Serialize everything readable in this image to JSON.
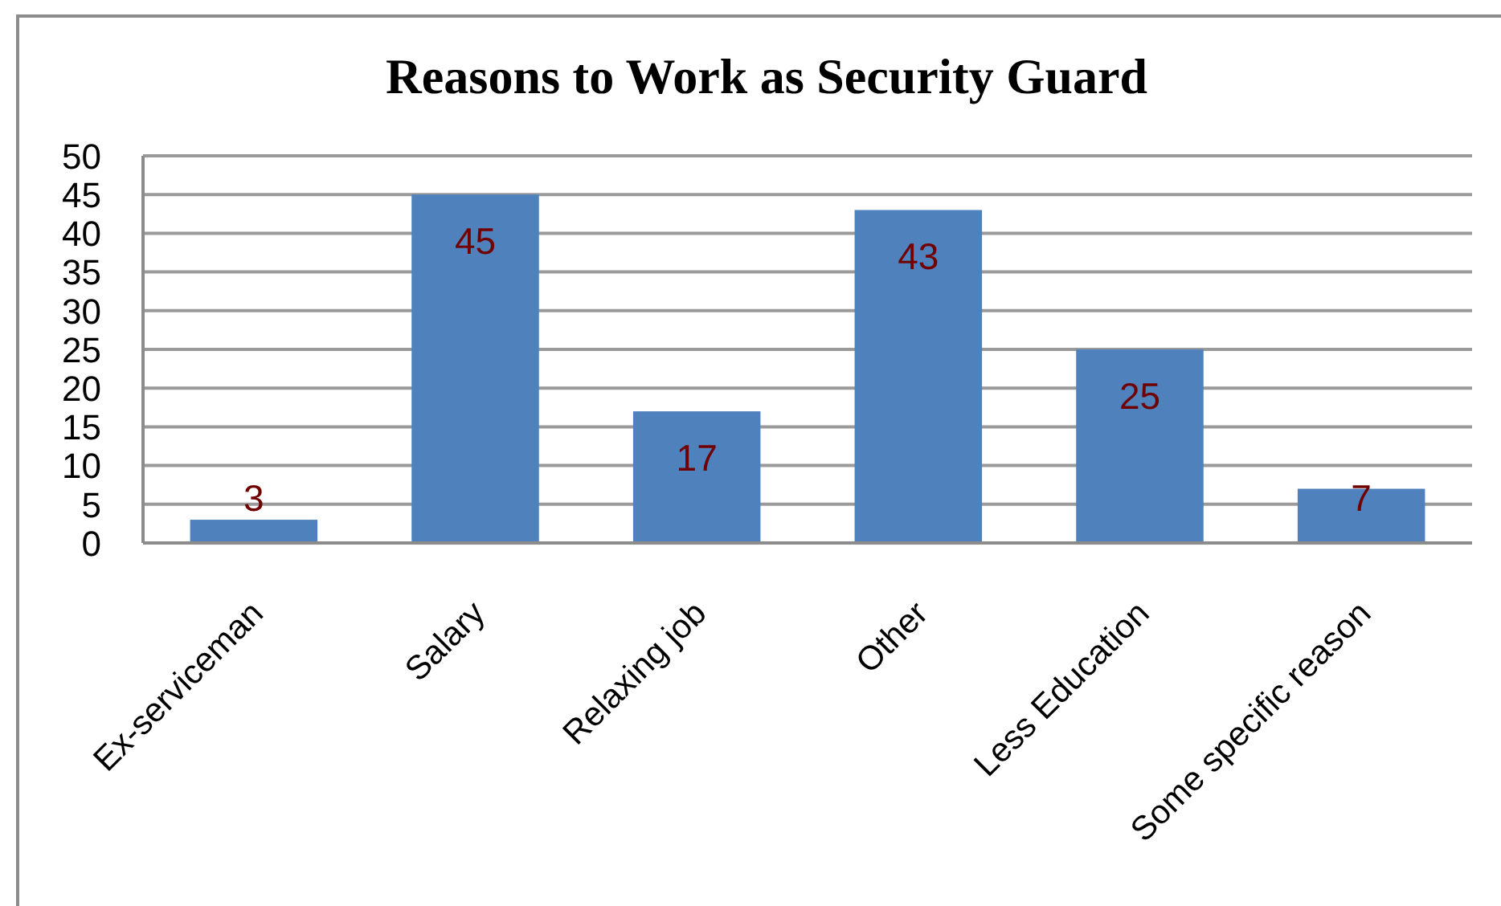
{
  "chart_data": {
    "type": "bar",
    "title": "Reasons to Work as Security Guard",
    "categories": [
      "Ex-serviceman",
      "Salary",
      "Relaxing job",
      "Other",
      "Less Education",
      "Some specific reason"
    ],
    "values": [
      3,
      45,
      17,
      43,
      25,
      7
    ],
    "color": "#4f81bd",
    "ylim": [
      0,
      50
    ],
    "yticks": [
      0,
      5,
      10,
      15,
      20,
      25,
      30,
      35,
      40,
      45,
      50
    ],
    "grid": "y",
    "data_labels": true
  }
}
